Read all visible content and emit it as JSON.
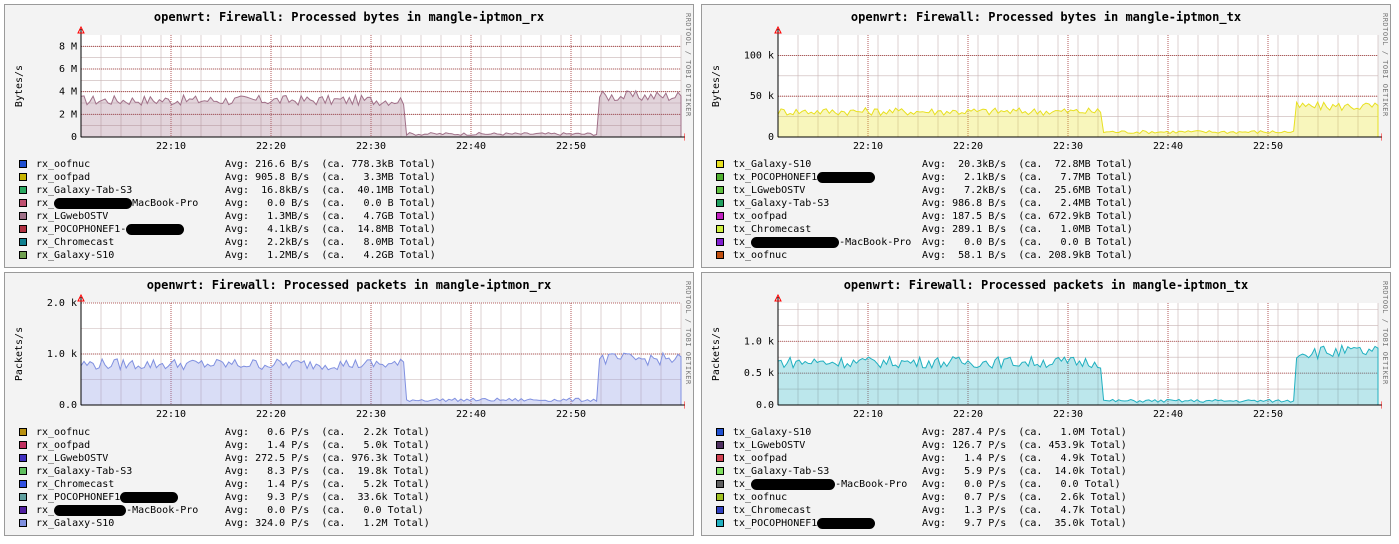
{
  "colors": {
    "panel_bg": "#f3f3f3",
    "grid_major": "#a03030",
    "grid_minor": "#c8b4b4",
    "axis_arrow": "#ff0000"
  },
  "watermark": "RRDTOOL / TOBI OETIKER",
  "chart_data": [
    {
      "type": "area",
      "title": "openwrt: Firewall: Processed bytes in mangle-iptmon_rx",
      "ylabel": "Bytes/s",
      "ylim": [
        0,
        9000000
      ],
      "y_ticks": [
        {
          "value": 0,
          "label": "0"
        },
        {
          "value": 2000000,
          "label": "2 M"
        },
        {
          "value": 4000000,
          "label": "4 M"
        },
        {
          "value": 6000000,
          "label": "6 M"
        },
        {
          "value": 8000000,
          "label": "8 M"
        }
      ],
      "x_ticks": [
        "22:10",
        "22:20",
        "22:30",
        "22:40",
        "22:50"
      ],
      "series": [
        {
          "name": "rx_oofnuc",
          "color": "#1f4fd0",
          "avg": "Avg: 216.6 B/s",
          "total": "(ca. 778.3kB Total)"
        },
        {
          "name": "rx_oofpad",
          "color": "#c8b400",
          "avg": "Avg: 905.8 B/s",
          "total": "(ca.   3.3MB Total)"
        },
        {
          "name": "rx_Galaxy-Tab-S3",
          "color": "#2aa860",
          "avg": "Avg:  16.8kB/s",
          "total": "(ca.  40.1MB Total)"
        },
        {
          "name": "rx_",
          "suffix": "MacBook-Pro",
          "redact": 78,
          "color": "#c05070",
          "avg": "Avg:   0.0 B/s",
          "total": "(ca.   0.0 B Total)"
        },
        {
          "name": "rx_LGwebOSTV",
          "color": "#a07088",
          "avg": "Avg:   1.3MB/s",
          "total": "(ca.   4.7GB Total)"
        },
        {
          "name": "rx_POCOPHONEF1-",
          "suffix": "",
          "redact": 58,
          "color": "#b03040",
          "avg": "Avg:   4.1kB/s",
          "total": "(ca.  14.8MB Total)"
        },
        {
          "name": "rx_Chromecast",
          "color": "#108090",
          "avg": "Avg:   2.2kB/s",
          "total": "(ca.   8.0MB Total)"
        },
        {
          "name": "rx_Galaxy-S10",
          "color": "#70a050",
          "avg": "Avg:   1.2MB/s",
          "total": "(ca.   4.2GB Total)"
        }
      ]
    },
    {
      "type": "area",
      "title": "openwrt: Firewall: Processed bytes in mangle-iptmon_tx",
      "ylabel": "Bytes/s",
      "ylim": [
        0,
        125000
      ],
      "y_ticks": [
        {
          "value": 0,
          "label": "0"
        },
        {
          "value": 50000,
          "label": "50 k"
        },
        {
          "value": 100000,
          "label": "100 k"
        }
      ],
      "x_ticks": [
        "22:10",
        "22:20",
        "22:30",
        "22:40",
        "22:50"
      ],
      "series": [
        {
          "name": "tx_Galaxy-S10",
          "color": "#e8e020",
          "avg": "Avg:  20.3kB/s",
          "total": "(ca.  72.8MB Total)"
        },
        {
          "name": "tx_POCOPHONEF1",
          "suffix": "",
          "redact": 58,
          "color": "#50b030",
          "avg": "Avg:   2.1kB/s",
          "total": "(ca.   7.7MB Total)"
        },
        {
          "name": "tx_LGwebOSTV",
          "color": "#60c040",
          "avg": "Avg:   7.2kB/s",
          "total": "(ca.  25.6MB Total)"
        },
        {
          "name": "tx_Galaxy-Tab-S3",
          "color": "#20a060",
          "avg": "Avg: 986.8 B/s",
          "total": "(ca.   2.4MB Total)"
        },
        {
          "name": "tx_oofpad",
          "color": "#c020c0",
          "avg": "Avg: 187.5 B/s",
          "total": "(ca. 672.9kB Total)"
        },
        {
          "name": "tx_Chromecast",
          "color": "#d0f040",
          "avg": "Avg: 289.1 B/s",
          "total": "(ca.   1.0MB Total)"
        },
        {
          "name": "tx_",
          "suffix": "-MacBook-Pro",
          "redact": 88,
          "color": "#8020d0",
          "avg": "Avg:   0.0 B/s",
          "total": "(ca.   0.0 B Total)"
        },
        {
          "name": "tx_oofnuc",
          "color": "#c05010",
          "avg": "Avg:  58.1 B/s",
          "total": "(ca. 208.9kB Total)"
        }
      ]
    },
    {
      "type": "area",
      "title": "openwrt: Firewall: Processed packets in mangle-iptmon_rx",
      "ylabel": "Packets/s",
      "ylim": [
        0,
        2000
      ],
      "y_ticks": [
        {
          "value": 0,
          "label": "0.0"
        },
        {
          "value": 1000,
          "label": "1.0 k"
        },
        {
          "value": 2000,
          "label": "2.0 k"
        }
      ],
      "x_ticks": [
        "22:10",
        "22:20",
        "22:30",
        "22:40",
        "22:50"
      ],
      "series": [
        {
          "name": "rx_oofnuc",
          "color": "#b89010",
          "avg": "Avg:   0.6 P/s",
          "total": "(ca.   2.2k Total)"
        },
        {
          "name": "rx_oofpad",
          "color": "#c03060",
          "avg": "Avg:   1.4 P/s",
          "total": "(ca.   5.0k Total)"
        },
        {
          "name": "rx_LGwebOSTV",
          "color": "#4030c0",
          "avg": "Avg: 272.5 P/s",
          "total": "(ca. 976.3k Total)"
        },
        {
          "name": "rx_Galaxy-Tab-S3",
          "color": "#60c060",
          "avg": "Avg:   8.3 P/s",
          "total": "(ca.  19.8k Total)"
        },
        {
          "name": "rx_Chromecast",
          "color": "#3050e0",
          "avg": "Avg:   1.4 P/s",
          "total": "(ca.   5.2k Total)"
        },
        {
          "name": "rx_POCOPHONEF1",
          "suffix": "",
          "redact": 58,
          "color": "#60a0a0",
          "avg": "Avg:   9.3 P/s",
          "total": "(ca.  33.6k Total)"
        },
        {
          "name": "rx_",
          "suffix": "-MacBook-Pro",
          "redact": 72,
          "color": "#5020a0",
          "avg": "Avg:   0.0 P/s",
          "total": "(ca.   0.0 Total)"
        },
        {
          "name": "rx_Galaxy-S10",
          "color": "#8090e0",
          "avg": "Avg: 324.0 P/s",
          "total": "(ca.   1.2M Total)"
        }
      ]
    },
    {
      "type": "area",
      "title": "openwrt: Firewall: Processed packets in mangle-iptmon_tx",
      "ylabel": "Packets/s",
      "ylim": [
        0,
        1600
      ],
      "y_ticks": [
        {
          "value": 0,
          "label": "0.0"
        },
        {
          "value": 500,
          "label": "0.5 k"
        },
        {
          "value": 1000,
          "label": "1.0 k"
        }
      ],
      "x_ticks": [
        "22:10",
        "22:20",
        "22:30",
        "22:40",
        "22:50"
      ],
      "series": [
        {
          "name": "tx_Galaxy-S10",
          "color": "#2050d0",
          "avg": "Avg: 287.4 P/s",
          "total": "(ca.   1.0M Total)"
        },
        {
          "name": "tx_LGwebOSTV",
          "color": "#503060",
          "avg": "Avg: 126.7 P/s",
          "total": "(ca. 453.9k Total)"
        },
        {
          "name": "tx_oofpad",
          "color": "#d04050",
          "avg": "Avg:   1.4 P/s",
          "total": "(ca.   4.9k Total)"
        },
        {
          "name": "tx_Galaxy-Tab-S3",
          "color": "#80e060",
          "avg": "Avg:   5.9 P/s",
          "total": "(ca.  14.0k Total)"
        },
        {
          "name": "tx_",
          "suffix": "-MacBook-Pro",
          "redact": 84,
          "color": "#606060",
          "avg": "Avg:   0.0 P/s",
          "total": "(ca.   0.0 Total)"
        },
        {
          "name": "tx_oofnuc",
          "color": "#a0c020",
          "avg": "Avg:   0.7 P/s",
          "total": "(ca.   2.6k Total)"
        },
        {
          "name": "tx_Chromecast",
          "color": "#3040c0",
          "avg": "Avg:   1.3 P/s",
          "total": "(ca.   4.7k Total)"
        },
        {
          "name": "tx_POCOPHONEF1",
          "suffix": "",
          "redact": 58,
          "color": "#20b0c0",
          "avg": "Avg:   9.7 P/s",
          "total": "(ca.  35.0k Total)"
        }
      ]
    }
  ]
}
